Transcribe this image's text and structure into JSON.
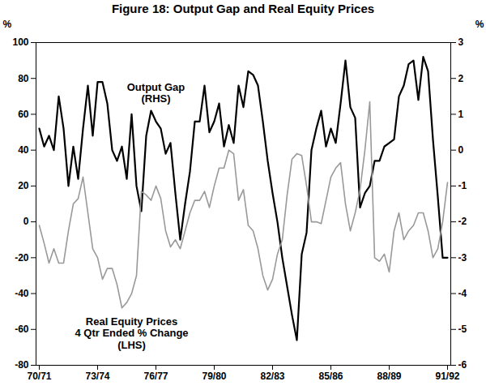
{
  "chart_data": {
    "type": "line",
    "title": "Figure 18: Output Gap and Real Equity Prices",
    "y_label": "%",
    "y2_label": "%",
    "categories": [
      "70/71",
      null,
      null,
      null,
      null,
      null,
      null,
      null,
      null,
      null,
      null,
      null,
      "73/74",
      null,
      null,
      null,
      null,
      null,
      null,
      null,
      null,
      null,
      null,
      null,
      "76/77",
      null,
      null,
      null,
      null,
      null,
      null,
      null,
      null,
      null,
      null,
      null,
      "79/80",
      null,
      null,
      null,
      null,
      null,
      null,
      null,
      null,
      null,
      null,
      null,
      "82/83",
      null,
      null,
      null,
      null,
      null,
      null,
      null,
      null,
      null,
      null,
      null,
      "85/86",
      null,
      null,
      null,
      null,
      null,
      null,
      null,
      null,
      null,
      null,
      null,
      "88/89",
      null,
      null,
      null,
      null,
      null,
      null,
      null,
      null,
      null,
      null,
      null,
      "91/92"
    ],
    "ylim": [
      -80,
      100
    ],
    "yticks": [
      -80,
      -60,
      -40,
      -20,
      0,
      20,
      40,
      60,
      80,
      100
    ],
    "y2lim": [
      -6,
      3
    ],
    "y2ticks": [
      -6,
      -5,
      -4,
      -3,
      -2,
      -1,
      0,
      1,
      2,
      3
    ],
    "grid": false,
    "series": [
      {
        "name": "Output Gap",
        "annotation": [
          "Output Gap",
          "(RHS)"
        ],
        "axis": "y2",
        "color": "#000000",
        "values": [
          0.6,
          0.1,
          0.4,
          0.0,
          1.5,
          0.6,
          -1.0,
          0.1,
          -0.8,
          0.6,
          1.8,
          0.4,
          1.9,
          1.9,
          1.3,
          0.0,
          -0.3,
          0.1,
          -0.8,
          1.0,
          -1.0,
          -1.7,
          0.4,
          1.1,
          0.8,
          0.6,
          -0.1,
          0.2,
          -1.2,
          -2.5,
          -1.5,
          -0.6,
          0.8,
          0.8,
          1.8,
          0.5,
          0.8,
          1.3,
          0.1,
          0.7,
          0.2,
          1.8,
          1.2,
          2.2,
          2.1,
          1.8,
          0.8,
          -0.3,
          -1.2,
          -2.0,
          -3.0,
          -3.8,
          -4.6,
          -5.3,
          -2.9,
          -2.3,
          0.0,
          0.6,
          1.1,
          0.1,
          0.6,
          0.2,
          1.3,
          2.5,
          1.2,
          0.9,
          -1.6,
          -1.2,
          -1.0,
          -0.3,
          -0.3,
          0.1,
          0.2,
          0.3,
          1.5,
          1.8,
          2.4,
          2.5,
          1.4,
          2.6,
          2.2,
          0.3,
          -1.3,
          -3.0,
          -3.0
        ]
      },
      {
        "name": "Real Equity Prices",
        "annotation": [
          "Real Equity Prices",
          "4 Qtr Ended % Change",
          "(LHS)"
        ],
        "axis": "y",
        "color": "#999999",
        "values": [
          -2,
          -12,
          -23,
          -15,
          -23,
          -23,
          -5,
          10,
          13,
          25,
          5,
          -15,
          -20,
          -32,
          -26,
          -26,
          -35,
          -48,
          -45,
          -40,
          -30,
          17,
          15,
          12,
          20,
          13,
          -5,
          -14,
          -10,
          -15,
          -5,
          5,
          12,
          12,
          17,
          8,
          20,
          30,
          30,
          40,
          38,
          12,
          18,
          -2,
          -5,
          -15,
          -30,
          -38,
          -32,
          -18,
          -10,
          15,
          35,
          38,
          37,
          20,
          0,
          0,
          -1,
          12,
          25,
          30,
          33,
          10,
          -5,
          5,
          18,
          40,
          67,
          -20,
          -22,
          -18,
          -28,
          -5,
          5,
          -10,
          -5,
          -2,
          5,
          5,
          -5,
          -20,
          -15,
          0,
          22
        ]
      }
    ]
  }
}
